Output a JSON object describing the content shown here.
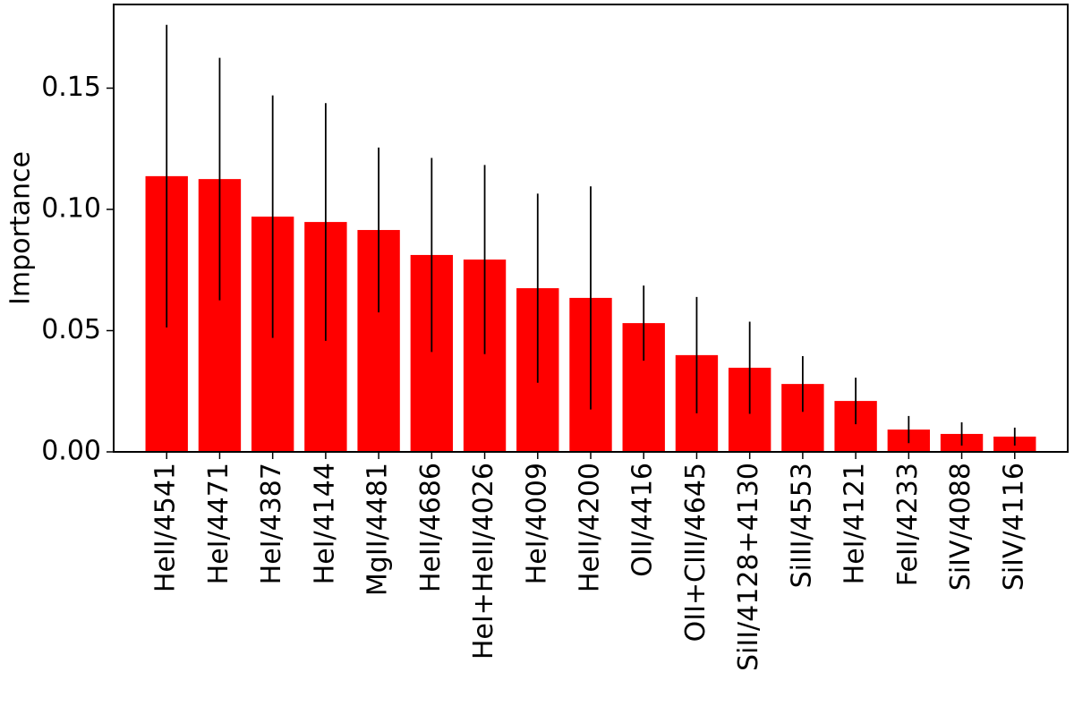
{
  "chart_data": {
    "type": "bar",
    "ylabel": "Importance",
    "categories": [
      "HeII/4541",
      "HeI/4471",
      "HeI/4387",
      "HeI/4144",
      "MgII/4481",
      "HeII/4686",
      "HeI+HeII/4026",
      "HeI/4009",
      "HeII/4200",
      "OII/4416",
      "OII+CIII/4645",
      "SiII/4128+4130",
      "SiIII/4553",
      "HeI/4121",
      "FeII/4233",
      "SiIV/4088",
      "SiIV/4116"
    ],
    "values": [
      0.1137,
      0.1125,
      0.097,
      0.0948,
      0.0915,
      0.0812,
      0.0793,
      0.0675,
      0.0635,
      0.0531,
      0.0399,
      0.0347,
      0.028,
      0.021,
      0.0092,
      0.0074,
      0.0063
    ],
    "errors": [
      0.0624,
      0.05,
      0.05,
      0.049,
      0.034,
      0.04,
      0.039,
      0.039,
      0.046,
      0.0155,
      0.024,
      0.019,
      0.0115,
      0.0096,
      0.0056,
      0.0048,
      0.0037
    ],
    "color": "#ff0000",
    "error_color": "#000000",
    "ylim": [
      0,
      0.1845
    ],
    "yticks": [
      {
        "value": 0,
        "label": "0.00"
      },
      {
        "value": 0.05,
        "label": "0.05"
      },
      {
        "value": 0.1,
        "label": "0.10"
      },
      {
        "value": 0.15,
        "label": "0.15"
      }
    ]
  }
}
